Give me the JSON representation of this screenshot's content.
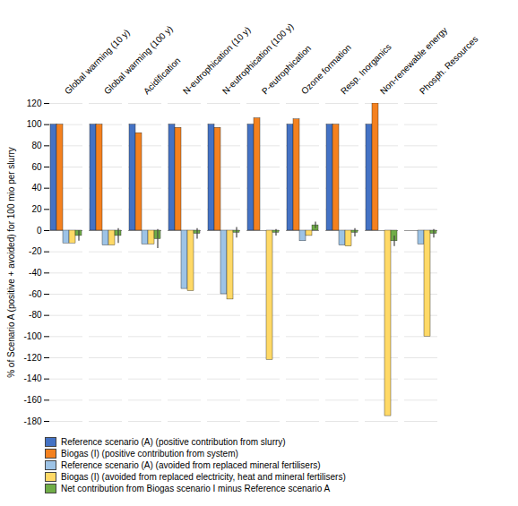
{
  "chart_data": {
    "type": "bar",
    "categories": [
      "Global warming (10 y)",
      "Global warming (100 y)",
      "Acidification",
      "N-eutrophication (10 y)",
      "N-eutrophication (100 y)",
      "P-eutrophication",
      "Ozone formation",
      "Resp. Inorganics",
      "Non-renewable energy",
      "Phosph. Resources"
    ],
    "series": [
      {
        "name": "Reference scenario (A)  (positive contribution from slurry)",
        "color": "#4472C4",
        "values": [
          100,
          100,
          100,
          100,
          100,
          100,
          100,
          100,
          100,
          0
        ]
      },
      {
        "name": "Biogas (I)  (positive contribution from system)",
        "color": "#F4811F",
        "values": [
          100,
          100,
          92,
          97,
          97,
          106,
          105,
          100,
          120,
          0
        ]
      },
      {
        "name": "Reference scenario (A)  (avoided from replaced mineral fertilisers)",
        "color": "#9DC3E6",
        "values": [
          -12,
          -14,
          -13,
          -55,
          -60,
          0,
          -10,
          -14,
          0,
          -13
        ]
      },
      {
        "name": "Biogas (I)  (avoided from replaced electricity, heat and mineral fertilisers)",
        "color": "#FFD966",
        "values": [
          -12,
          -14,
          -13,
          -57,
          -65,
          -122,
          -5,
          -15,
          -175,
          -100
        ]
      },
      {
        "name": "Net contribution from Biogas scenario I minus Reference scenario A",
        "color": "#70AD47",
        "values": [
          -5,
          -5,
          -8,
          -3,
          -2,
          -2,
          5,
          -2,
          -10,
          -3
        ],
        "err_low": [
          5,
          7,
          9,
          5,
          5,
          3,
          3,
          4,
          5,
          4
        ],
        "err_high": [
          5,
          7,
          9,
          5,
          5,
          3,
          3,
          4,
          5,
          4
        ]
      }
    ],
    "ylabel": "% of Scenario A (positive + avoided) for 100 mio per slurry",
    "ylim": [
      -180,
      120
    ],
    "yticks": [
      -180,
      -160,
      -140,
      -120,
      -100,
      -80,
      -60,
      -40,
      -20,
      0,
      20,
      40,
      60,
      80,
      100,
      120
    ],
    "grid": true,
    "legend": "bottom"
  }
}
